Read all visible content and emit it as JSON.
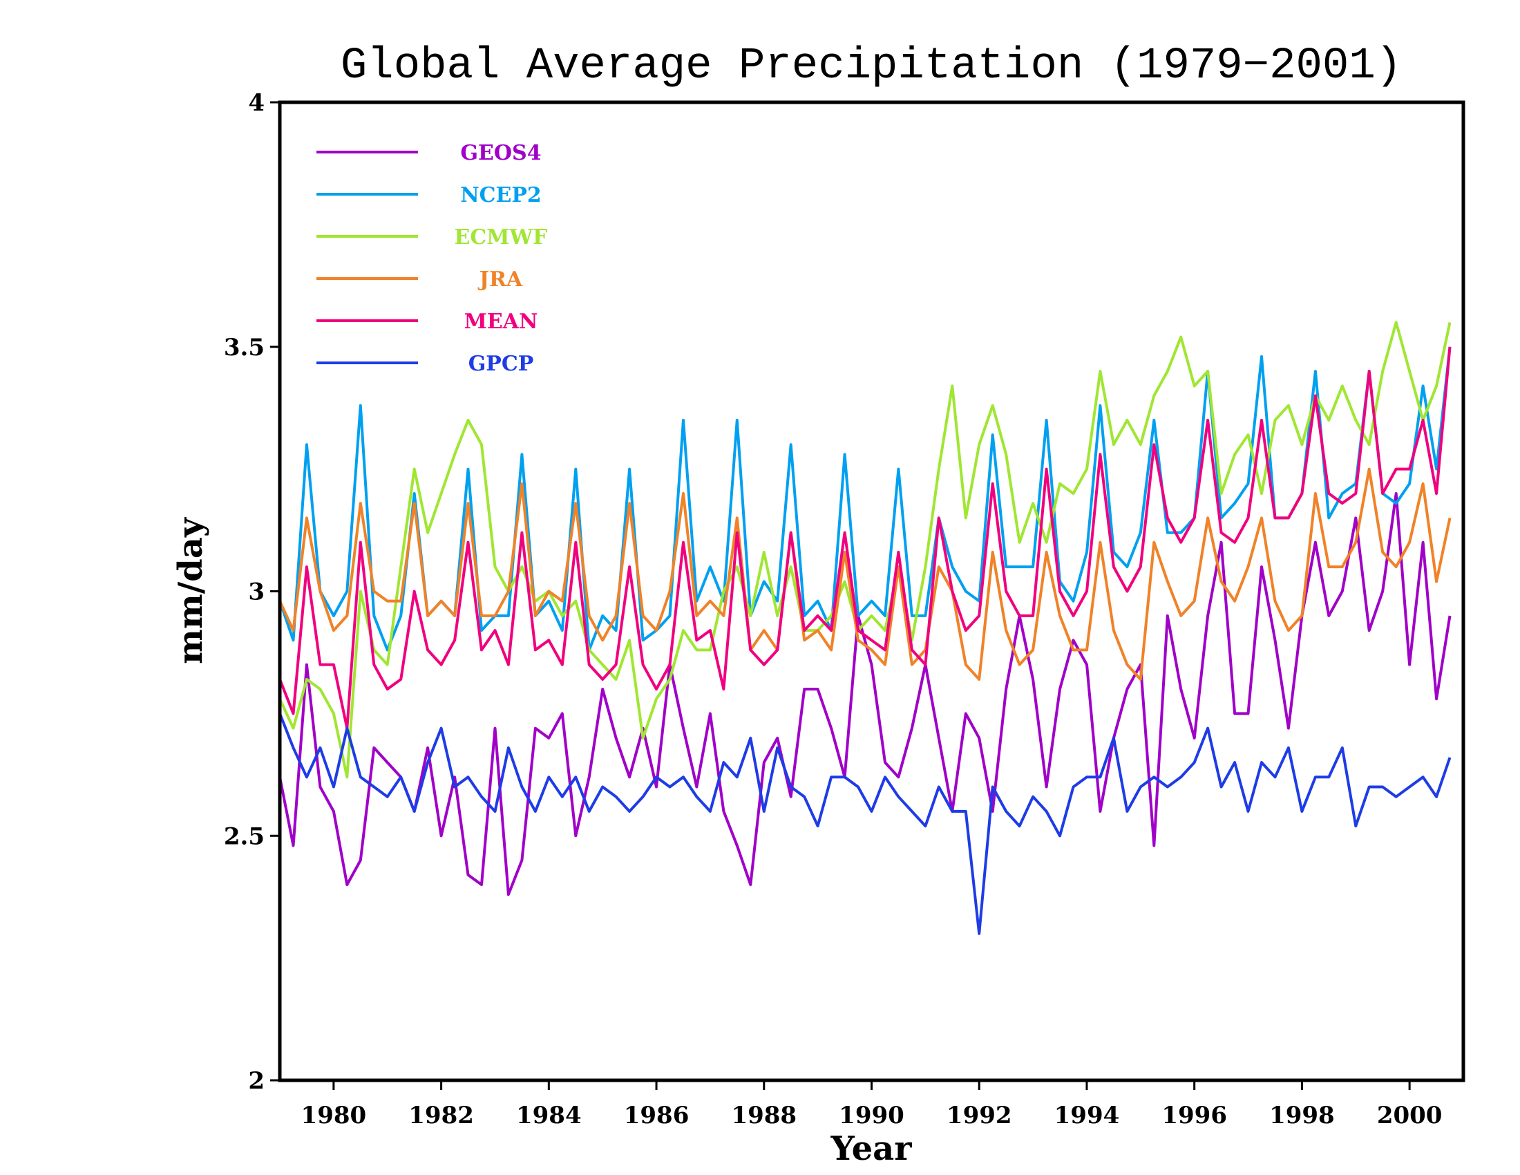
{
  "chart_data": {
    "type": "line",
    "title": "Global Average Precipitation (1979−2001)",
    "xlabel": "Year",
    "ylabel": "mm/day",
    "xlim": [
      1979.0,
      2001.0
    ],
    "ylim": [
      2,
      4
    ],
    "grid": false,
    "legend_position": "top-left",
    "x_ticks": [
      1980,
      1982,
      1984,
      1986,
      1988,
      1990,
      1992,
      1994,
      1996,
      1998,
      2000
    ],
    "x_tick_labels": [
      "1980",
      "1982",
      "1984",
      "1986",
      "1988",
      "1990",
      "1992",
      "1994",
      "1996",
      "1998",
      "2000"
    ],
    "y_ticks": [
      2,
      2.5,
      3,
      3.5,
      4
    ],
    "y_tick_labels": [
      "2",
      "2.5",
      "3",
      "3.5",
      "4"
    ],
    "x_start": 1979.0,
    "x_step": 0.25,
    "series": [
      {
        "name": "GEOS4",
        "color": "#a000c8",
        "values": [
          2.62,
          2.48,
          2.85,
          2.6,
          2.55,
          2.4,
          2.45,
          2.68,
          2.65,
          2.62,
          2.55,
          2.68,
          2.5,
          2.62,
          2.42,
          2.4,
          2.72,
          2.38,
          2.45,
          2.72,
          2.7,
          2.75,
          2.5,
          2.62,
          2.8,
          2.7,
          2.62,
          2.72,
          2.6,
          2.85,
          2.72,
          2.6,
          2.75,
          2.55,
          2.48,
          2.4,
          2.65,
          2.7,
          2.58,
          2.8,
          2.8,
          2.72,
          2.62,
          2.95,
          2.85,
          2.65,
          2.62,
          2.72,
          2.85,
          2.7,
          2.55,
          2.75,
          2.7,
          2.55,
          2.8,
          2.95,
          2.82,
          2.6,
          2.8,
          2.9,
          2.85,
          2.55,
          2.7,
          2.8,
          2.85,
          2.48,
          2.95,
          2.8,
          2.7,
          2.95,
          3.1,
          2.75,
          2.75,
          3.05,
          2.9,
          2.72,
          2.95,
          3.1,
          2.95,
          3.0,
          3.15,
          2.92,
          3.0,
          3.2,
          2.85,
          3.1,
          2.78,
          2.95
        ]
      },
      {
        "name": "NCEP2",
        "color": "#00a0f0",
        "values": [
          2.98,
          2.9,
          3.3,
          3.0,
          2.95,
          3.0,
          3.38,
          2.95,
          2.88,
          2.95,
          3.2,
          2.95,
          2.98,
          2.95,
          3.25,
          2.92,
          2.95,
          2.95,
          3.28,
          2.95,
          2.98,
          2.92,
          3.25,
          2.88,
          2.95,
          2.92,
          3.25,
          2.9,
          2.92,
          2.95,
          3.35,
          2.98,
          3.05,
          2.98,
          3.35,
          2.95,
          3.02,
          2.98,
          3.3,
          2.95,
          2.98,
          2.92,
          3.28,
          2.95,
          2.98,
          2.95,
          3.25,
          2.95,
          2.95,
          3.15,
          3.05,
          3.0,
          2.98,
          3.32,
          3.05,
          3.05,
          3.05,
          3.35,
          3.02,
          2.98,
          3.08,
          3.38,
          3.08,
          3.05,
          3.12,
          3.35,
          3.12,
          3.12,
          3.15,
          3.45,
          3.15,
          3.18,
          3.22,
          3.48,
          3.15,
          3.15,
          3.2,
          3.45,
          3.15,
          3.2,
          3.22,
          3.45,
          3.2,
          3.18,
          3.22,
          3.42,
          3.25,
          3.5
        ]
      },
      {
        "name": "ECMWF",
        "color": "#a0e632",
        "values": [
          2.78,
          2.72,
          2.82,
          2.8,
          2.75,
          2.62,
          3.0,
          2.88,
          2.85,
          3.05,
          3.25,
          3.12,
          3.2,
          3.28,
          3.35,
          3.3,
          3.05,
          3.0,
          3.05,
          2.98,
          3.0,
          2.95,
          2.98,
          2.88,
          2.85,
          2.82,
          2.9,
          2.7,
          2.78,
          2.82,
          2.92,
          2.88,
          2.88,
          3.0,
          3.05,
          2.95,
          3.08,
          2.95,
          3.05,
          2.92,
          2.92,
          2.95,
          3.02,
          2.92,
          2.95,
          2.92,
          3.05,
          2.9,
          3.05,
          3.25,
          3.42,
          3.15,
          3.3,
          3.38,
          3.28,
          3.1,
          3.18,
          3.1,
          3.22,
          3.2,
          3.25,
          3.45,
          3.3,
          3.35,
          3.3,
          3.4,
          3.45,
          3.52,
          3.42,
          3.45,
          3.2,
          3.28,
          3.32,
          3.2,
          3.35,
          3.38,
          3.3,
          3.4,
          3.35,
          3.42,
          3.35,
          3.3,
          3.45,
          3.55,
          3.45,
          3.35,
          3.42,
          3.55
        ]
      },
      {
        "name": "JRA",
        "color": "#f08228",
        "values": [
          2.98,
          2.92,
          3.15,
          3.0,
          2.92,
          2.95,
          3.18,
          3.0,
          2.98,
          2.98,
          3.18,
          2.95,
          2.98,
          2.95,
          3.18,
          2.95,
          2.95,
          3.0,
          3.22,
          2.95,
          3.0,
          2.98,
          3.18,
          2.95,
          2.9,
          2.95,
          3.18,
          2.95,
          2.92,
          3.0,
          3.2,
          2.95,
          2.98,
          2.95,
          3.15,
          2.88,
          2.92,
          2.88,
          3.12,
          2.9,
          2.92,
          2.88,
          3.08,
          2.9,
          2.88,
          2.85,
          3.05,
          2.85,
          2.88,
          3.05,
          3.0,
          2.85,
          2.82,
          3.08,
          2.92,
          2.85,
          2.88,
          3.08,
          2.95,
          2.88,
          2.88,
          3.1,
          2.92,
          2.85,
          2.82,
          3.1,
          3.02,
          2.95,
          2.98,
          3.15,
          3.02,
          2.98,
          3.05,
          3.15,
          2.98,
          2.92,
          2.95,
          3.2,
          3.05,
          3.05,
          3.1,
          3.25,
          3.08,
          3.05,
          3.1,
          3.22,
          3.02,
          3.15
        ]
      },
      {
        "name": "MEAN",
        "color": "#f0007e",
        "values": [
          2.82,
          2.75,
          3.05,
          2.85,
          2.85,
          2.72,
          3.1,
          2.85,
          2.8,
          2.82,
          3.0,
          2.88,
          2.85,
          2.9,
          3.1,
          2.88,
          2.92,
          2.85,
          3.12,
          2.88,
          2.9,
          2.85,
          3.1,
          2.85,
          2.82,
          2.85,
          3.05,
          2.85,
          2.8,
          2.85,
          3.1,
          2.9,
          2.92,
          2.8,
          3.12,
          2.88,
          2.85,
          2.88,
          3.12,
          2.92,
          2.95,
          2.92,
          3.12,
          2.92,
          2.9,
          2.88,
          3.08,
          2.88,
          2.85,
          3.15,
          3.0,
          2.92,
          2.95,
          3.22,
          3.0,
          2.95,
          2.95,
          3.25,
          3.0,
          2.95,
          3.0,
          3.28,
          3.05,
          3.0,
          3.05,
          3.3,
          3.15,
          3.1,
          3.15,
          3.35,
          3.12,
          3.1,
          3.15,
          3.35,
          3.15,
          3.15,
          3.2,
          3.4,
          3.2,
          3.18,
          3.2,
          3.45,
          3.2,
          3.25,
          3.25,
          3.35,
          3.2,
          3.5
        ]
      },
      {
        "name": "GPCP",
        "color": "#1e3ce6",
        "values": [
          2.75,
          2.68,
          2.62,
          2.68,
          2.6,
          2.72,
          2.62,
          2.6,
          2.58,
          2.62,
          2.55,
          2.65,
          2.72,
          2.6,
          2.62,
          2.58,
          2.55,
          2.68,
          2.6,
          2.55,
          2.62,
          2.58,
          2.62,
          2.55,
          2.6,
          2.58,
          2.55,
          2.58,
          2.62,
          2.6,
          2.62,
          2.58,
          2.55,
          2.65,
          2.62,
          2.7,
          2.55,
          2.68,
          2.6,
          2.58,
          2.52,
          2.62,
          2.62,
          2.6,
          2.55,
          2.62,
          2.58,
          2.55,
          2.52,
          2.6,
          2.55,
          2.55,
          2.3,
          2.6,
          2.55,
          2.52,
          2.58,
          2.55,
          2.5,
          2.6,
          2.62,
          2.62,
          2.7,
          2.55,
          2.6,
          2.62,
          2.6,
          2.62,
          2.65,
          2.72,
          2.6,
          2.65,
          2.55,
          2.65,
          2.62,
          2.68,
          2.55,
          2.62,
          2.62,
          2.68,
          2.52,
          2.6,
          2.6,
          2.58,
          2.6,
          2.62,
          2.58,
          2.66
        ]
      }
    ]
  }
}
